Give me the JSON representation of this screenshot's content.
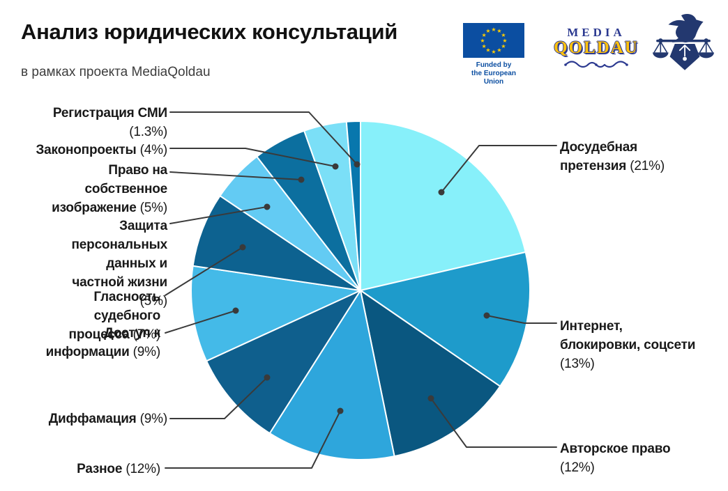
{
  "header": {
    "title": "Анализ юридических консультаций",
    "subtitle": "в рамках проекта MediaQoldau"
  },
  "logos": {
    "eu": {
      "caption_line1": "Funded by",
      "caption_line2": "the European Union",
      "flag_color": "#0b4ea1",
      "star_color": "#ffcc00"
    },
    "media_qoldau": {
      "line1": "MEDIA",
      "line2": "QOLDAU",
      "navy": "#2b3990",
      "yellow": "#ffc20d"
    },
    "adil_soz": {
      "description": "press-freedom-emblem-bird-over-scales",
      "color": "#23386f"
    }
  },
  "chart_data": {
    "type": "pie",
    "title": "Анализ юридических консультаций",
    "subtitle": "в рамках проекта MediaQoldau",
    "start": "top",
    "direction": "clockwise",
    "labels_position": "outside-with-leader-lines",
    "leader_line_color": "#3a3a3a",
    "slices": [
      {
        "label": "Досудебная претензия",
        "pct_text": "(21%)",
        "value": 21,
        "color": "#87f0fa"
      },
      {
        "label": "Интернет, блокировки, соцсети",
        "pct_text": "(13%)",
        "value": 13,
        "color": "#1e9bcb"
      },
      {
        "label": "Авторское право",
        "pct_text": "(12%)",
        "value": 12,
        "color": "#0a5780"
      },
      {
        "label": "Разное",
        "pct_text": "(12%)",
        "value": 12,
        "color": "#2ea6dc"
      },
      {
        "label": "Диффамация",
        "pct_text": "(9%)",
        "value": 9,
        "color": "#0f5f8d"
      },
      {
        "label": "Доступ к информации",
        "pct_text": "(9%)",
        "value": 9,
        "color": "#44bae8"
      },
      {
        "label": "Гласность судебного процесса",
        "pct_text": "(7%)",
        "value": 7,
        "color": "#0d6290"
      },
      {
        "label": "Защита персональных данных и частной жизни",
        "pct_text": "(5%)",
        "value": 5,
        "color": "#63cbf3"
      },
      {
        "label": "Право на собственное изображение",
        "pct_text": "(5%)",
        "value": 5,
        "color": "#0c6f9f"
      },
      {
        "label": "Законопроекты",
        "pct_text": "(4%)",
        "value": 4,
        "color": "#7bdff7"
      },
      {
        "label": "Регистрация СМИ",
        "pct_text": "(1.3%)",
        "value": 1.3,
        "color": "#0877ad"
      }
    ]
  }
}
